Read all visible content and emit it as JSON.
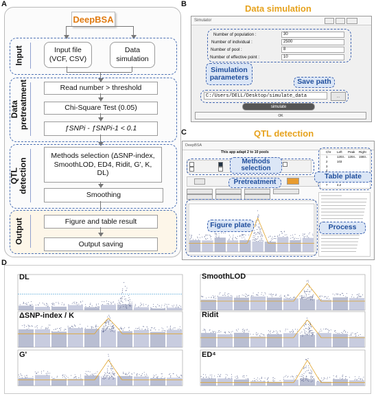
{
  "panel_letters": {
    "a": "A",
    "b": "B",
    "c": "C",
    "d": "D"
  },
  "panel_a": {
    "title": "DeepBSA",
    "stages": {
      "input": "Input",
      "pretreatment": "Data pretreatment",
      "qtl": "QTL detection",
      "output": "Output"
    },
    "input_file": "Input file (VCF, CSV)",
    "data_simulation": "Data simulation",
    "read_number": "Read number > threshold",
    "chi_square": "Chi-Square Test (0.05)",
    "snp_diff": "ƒSNPi - ƒSNPi-1 < 0.1",
    "methods": "Methods selection (ΔSNP-index, SmoothLOD, ED4, Ridit, G', K, DL)",
    "smoothing": "Smoothing",
    "figure_table": "Figure and table result",
    "output_saving": "Output saving"
  },
  "panel_b": {
    "heading": "Data simulation",
    "window_title": "Simulator",
    "fields": [
      {
        "label": "Number of population :",
        "value": "30"
      },
      {
        "label": "Number of individual :",
        "value": "2500"
      },
      {
        "label": "Number of pool :",
        "value": "8"
      },
      {
        "label": "Number of effective point :",
        "value": "10"
      }
    ],
    "path_value": "C:/Users/DELL/Desktop/simulate_data",
    "browse_label": "...",
    "simulate_label": "simulate",
    "ok_label": "OK",
    "callouts": {
      "params": "Simulation parameters",
      "save_path": "Save path"
    }
  },
  "panel_c": {
    "heading": "QTL detection",
    "window_title": "DeepBSA",
    "top_text": "This app adapt 2 to 10 pools",
    "table_headers": [
      "Chr",
      "Left",
      "Peak",
      "Right"
    ],
    "table_rows": [
      [
        "1",
        "1203..",
        "1204..",
        "1593.."
      ],
      [
        "2",
        "103",
        "",
        ""
      ],
      [
        "3",
        "",
        "",
        ""
      ],
      [
        "4",
        "",
        "",
        ""
      ],
      [
        "5",
        "6.7",
        "",
        ""
      ],
      [
        "6",
        "5.0",
        "",
        ""
      ],
      [
        "7",
        "4.2",
        "",
        ""
      ]
    ],
    "callouts": {
      "methods": "Methods selection",
      "pretreatment": "Pretreatment",
      "table": "Table plate",
      "figure": "Figure plate",
      "process": "Process"
    }
  },
  "panel_d": {
    "labels": {
      "dl": "DL",
      "smoothlod": "SmoothLOD",
      "snp": "ΔSNP-index / K",
      "ridit": "Ridit",
      "g": "G'",
      "ed": "ED⁴"
    },
    "colors": {
      "points": "#8a94b8",
      "curve": "#e0a32a",
      "threshold": "#4aa0d6"
    }
  }
}
